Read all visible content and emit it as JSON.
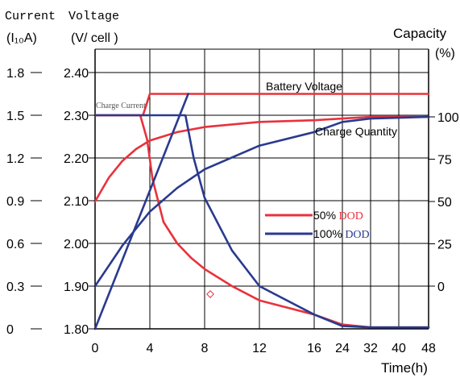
{
  "chart_data": {
    "type": "line",
    "headers": {
      "current": "Current",
      "voltage": "Voltage",
      "current_unit": "(I₁₀A)",
      "voltage_unit": "(V/ cell )",
      "capacity": "Capacity",
      "capacity_unit": "(%)",
      "xlabel": "Time(h)"
    },
    "x_ticks": [
      "0",
      "4",
      "8",
      "12",
      "16",
      "24",
      "32",
      "40",
      "48"
    ],
    "current_ticks": [
      {
        "label": "0",
        "value": 0
      },
      {
        "label": "0.3",
        "value": 0.3
      },
      {
        "label": "0.6",
        "value": 0.6
      },
      {
        "label": "0.9",
        "value": 0.9
      },
      {
        "label": "1.2",
        "value": 1.2
      },
      {
        "label": "1.5",
        "value": 1.5
      },
      {
        "label": "1.8",
        "value": 1.8
      }
    ],
    "voltage_ticks": [
      {
        "label": "1.80",
        "value": 1.8
      },
      {
        "label": "1.90",
        "value": 1.9
      },
      {
        "label": "2.00",
        "value": 2.0
      },
      {
        "label": "2.10",
        "value": 2.1
      },
      {
        "label": "2.20",
        "value": 2.2
      },
      {
        "label": "2.30",
        "value": 2.3
      },
      {
        "label": "2.40",
        "value": 2.4
      }
    ],
    "capacity_ticks": [
      {
        "label": "0",
        "value": 0
      },
      {
        "label": "25",
        "value": 25
      },
      {
        "label": "50",
        "value": 50
      },
      {
        "label": "75",
        "value": 75
      },
      {
        "label": "100",
        "value": 100
      }
    ],
    "annotations": {
      "battery_voltage": "Battery Voltage",
      "charge_current": "Charge Current",
      "charge_quantity": "Charge Quantity"
    },
    "legend": [
      {
        "pct": "50%",
        "dod": " DOD",
        "color": "#e8323c"
      },
      {
        "pct": "100%",
        "dod": " DOD",
        "color": "#2a3a8f"
      }
    ],
    "series": [
      {
        "name": "50% DOD",
        "color": "#e8323c",
        "voltage": [
          [
            0,
            2.3
          ],
          [
            3.5,
            2.3
          ],
          [
            4,
            2.35
          ],
          [
            48,
            2.35
          ]
        ],
        "current": [
          [
            0,
            1.5
          ],
          [
            3.3,
            1.5
          ],
          [
            3.8,
            1.33
          ],
          [
            4.2,
            1.05
          ],
          [
            5,
            0.75
          ],
          [
            6,
            0.6
          ],
          [
            7,
            0.5
          ],
          [
            8,
            0.42
          ],
          [
            10,
            0.3
          ],
          [
            12,
            0.2
          ],
          [
            16,
            0.1
          ],
          [
            24,
            0.03
          ],
          [
            32,
            0.01
          ],
          [
            40,
            0.01
          ],
          [
            48,
            0.01
          ]
        ],
        "capacity": [
          [
            0,
            50
          ],
          [
            1,
            64
          ],
          [
            2,
            74
          ],
          [
            3,
            81
          ],
          [
            4,
            86
          ],
          [
            6,
            91
          ],
          [
            8,
            94
          ],
          [
            12,
            97
          ],
          [
            16,
            98
          ],
          [
            24,
            99
          ],
          [
            32,
            100
          ],
          [
            48,
            100
          ]
        ]
      },
      {
        "name": "100% DOD",
        "color": "#2a3a8f",
        "voltage": [
          [
            0,
            1.8
          ],
          [
            6.8,
            2.35
          ]
        ],
        "current": [
          [
            0,
            1.5
          ],
          [
            6.6,
            1.5
          ],
          [
            7.2,
            1.2
          ],
          [
            8,
            0.92
          ],
          [
            10,
            0.55
          ],
          [
            12,
            0.3
          ],
          [
            16,
            0.1
          ],
          [
            24,
            0.02
          ],
          [
            32,
            0.01
          ],
          [
            48,
            0.01
          ]
        ],
        "capacity": [
          [
            0,
            0
          ],
          [
            2,
            24
          ],
          [
            4,
            44
          ],
          [
            6,
            58
          ],
          [
            8,
            69
          ],
          [
            12,
            83
          ],
          [
            16,
            91
          ],
          [
            24,
            97
          ],
          [
            32,
            99
          ],
          [
            48,
            100
          ]
        ]
      }
    ]
  }
}
